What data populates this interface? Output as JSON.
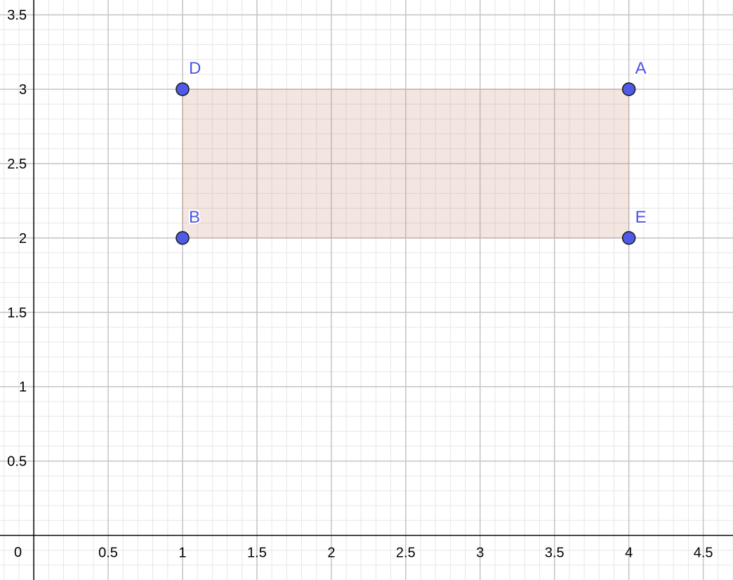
{
  "app": "Graphing view",
  "axes": {
    "x_range": [
      -0.227,
      4.7
    ],
    "y_range": [
      -0.3,
      3.6
    ],
    "major_step": 0.5,
    "minor_step": 0.1,
    "origin_label": "0",
    "x_ticks": [
      {
        "value": 0.5,
        "label": "0.5"
      },
      {
        "value": 1,
        "label": "1"
      },
      {
        "value": 1.5,
        "label": "1.5"
      },
      {
        "value": 2,
        "label": "2"
      },
      {
        "value": 2.5,
        "label": "2.5"
      },
      {
        "value": 3,
        "label": "3"
      },
      {
        "value": 3.5,
        "label": "3.5"
      },
      {
        "value": 4,
        "label": "4"
      },
      {
        "value": 4.5,
        "label": "4.5"
      }
    ],
    "y_ticks": [
      {
        "value": 0.5,
        "label": "0.5"
      },
      {
        "value": 1,
        "label": "1"
      },
      {
        "value": 1.5,
        "label": "1.5"
      },
      {
        "value": 2,
        "label": "2"
      },
      {
        "value": 2.5,
        "label": "2.5"
      },
      {
        "value": 3,
        "label": "3"
      },
      {
        "value": 3.5,
        "label": "3.5"
      }
    ],
    "grid": true
  },
  "points": [
    {
      "label": "D",
      "x": 1,
      "y": 3
    },
    {
      "label": "A",
      "x": 4,
      "y": 3
    },
    {
      "label": "B",
      "x": 1,
      "y": 2
    },
    {
      "label": "E",
      "x": 4,
      "y": 2
    }
  ],
  "polygon": {
    "vertices": [
      "B",
      "E",
      "A",
      "D"
    ],
    "fill": "#c5836a",
    "fill_opacity": 0.2,
    "stroke": "#c8b4ac"
  },
  "colors": {
    "point_fill": "#4f5ae6",
    "point_stroke": "#1a1a1a",
    "point_label": "#4c55e6",
    "major_grid": "#c4c4c4",
    "minor_grid": "#e6e6e6",
    "axis": "#000000"
  }
}
